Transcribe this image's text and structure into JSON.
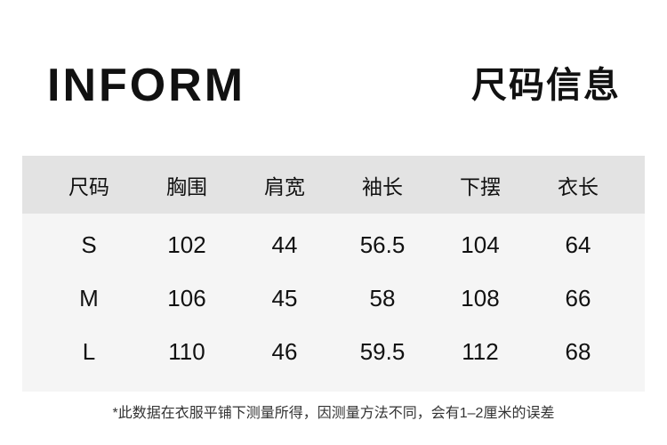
{
  "brand": "INFORM",
  "title": "尺码信息",
  "table": {
    "headers": [
      "尺码",
      "胸围",
      "肩宽",
      "袖长",
      "下摆",
      "衣长"
    ],
    "rows": [
      [
        "S",
        "102",
        "44",
        "56.5",
        "104",
        "64"
      ],
      [
        "M",
        "106",
        "45",
        "58",
        "108",
        "66"
      ],
      [
        "L",
        "110",
        "46",
        "59.5",
        "112",
        "68"
      ]
    ]
  },
  "note": "*此数据在衣服平铺下测量所得，因测量方法不同，会有1–2厘米的误差",
  "colors": {
    "header_bg": "#e3e3e3",
    "body_bg": "#f5f5f5",
    "text": "#111111"
  }
}
